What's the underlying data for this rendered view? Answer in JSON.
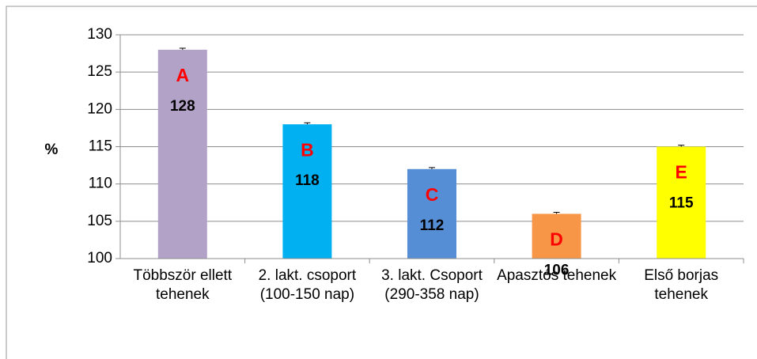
{
  "chart_data": {
    "type": "bar",
    "ylabel": "%",
    "categories": [
      "Többször ellett tehenek",
      "2. lakt. csoport (100-150 nap)",
      "3. lakt. Csoport (290-358 nap)",
      "Apasztós tehenek",
      "Első borjas tehenek"
    ],
    "values": [
      128,
      118,
      112,
      106,
      115
    ],
    "errors": [
      0.2,
      0.2,
      0.2,
      0.2,
      0.2
    ],
    "letters": [
      "A",
      "B",
      "C",
      "D",
      "E"
    ],
    "colors": [
      "#b3a2c7",
      "#00b0f0",
      "#558ed5",
      "#f79646",
      "#ffff00"
    ],
    "ylim": [
      100,
      130
    ],
    "yticks": [
      100,
      105,
      110,
      115,
      120,
      125,
      130
    ],
    "grid": true
  }
}
